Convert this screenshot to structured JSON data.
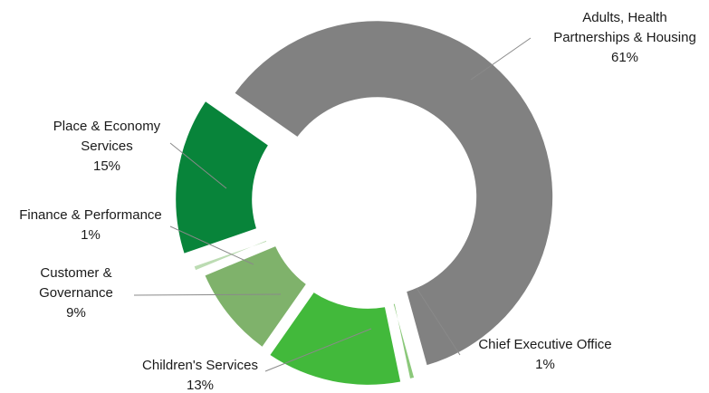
{
  "chart_data": {
    "type": "pie",
    "donut": true,
    "title": "",
    "slices": [
      {
        "id": "adults",
        "lines": [
          "Adults, Health",
          "Partnerships & Housing"
        ],
        "pct_label": "61%",
        "value": 61,
        "color": "#818181"
      },
      {
        "id": "chief",
        "lines": [
          "Chief Executive Office"
        ],
        "pct_label": "1%",
        "value": 1,
        "color": "#8bc87a"
      },
      {
        "id": "childrens",
        "lines": [
          "Children's Services"
        ],
        "pct_label": "13%",
        "value": 13,
        "color": "#42b93b"
      },
      {
        "id": "customer",
        "lines": [
          "Customer &",
          "Governance"
        ],
        "pct_label": "9%",
        "value": 9,
        "color": "#7fb26b"
      },
      {
        "id": "finance",
        "lines": [
          "Finance & Performance"
        ],
        "pct_label": "1%",
        "value": 1,
        "color": "#bcdcb3"
      },
      {
        "id": "place",
        "lines": [
          "Place & Economy",
          "Services"
        ],
        "pct_label": "15%",
        "value": 15,
        "color": "#08843a"
      }
    ],
    "legend": "none"
  }
}
